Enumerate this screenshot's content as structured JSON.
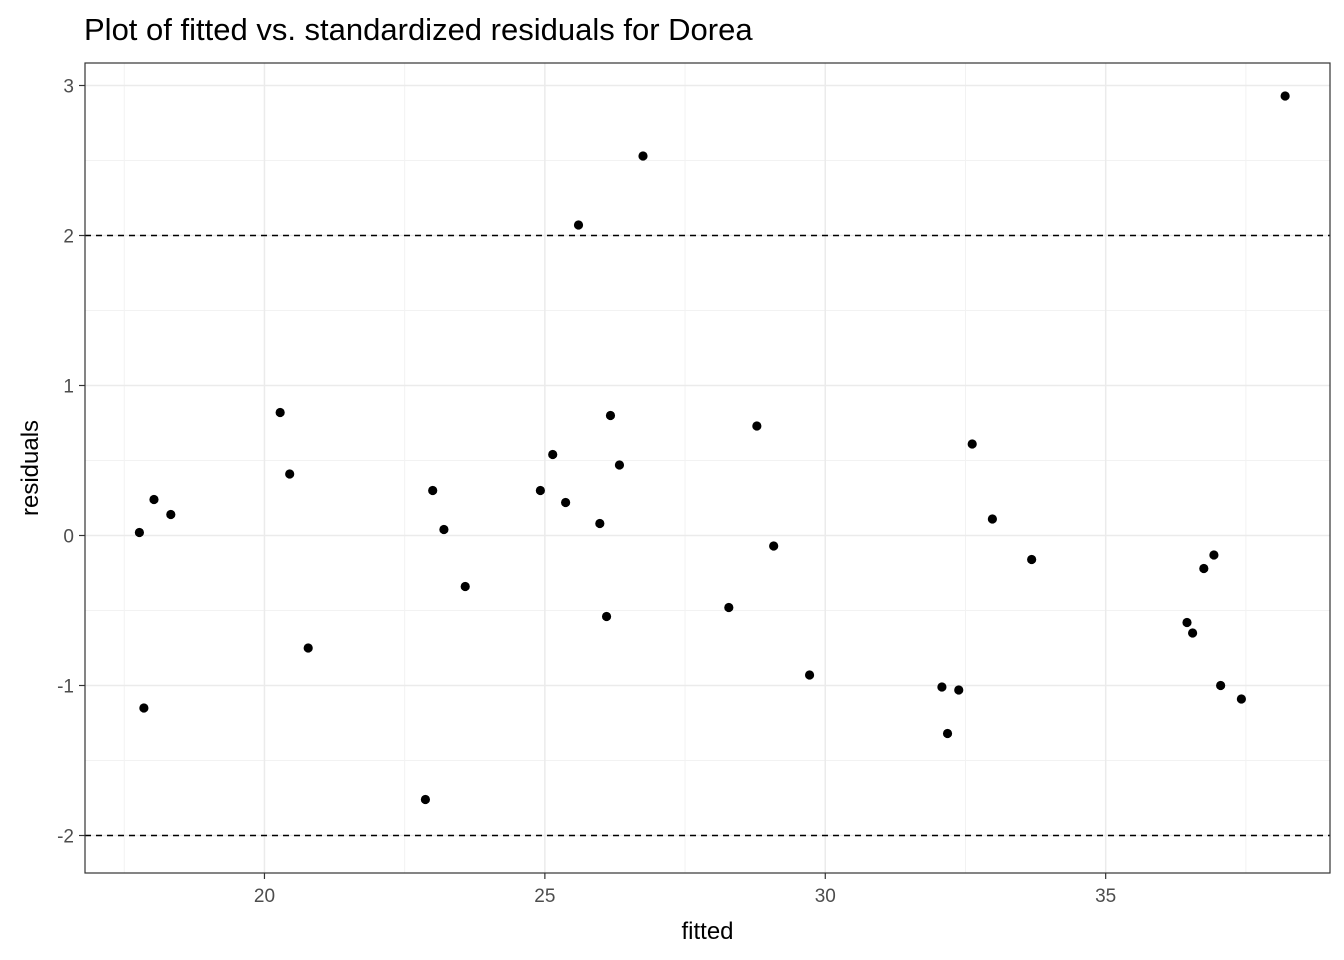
{
  "chart_data": {
    "type": "scatter",
    "title": "Plot of fitted vs. standardized residuals for Dorea",
    "xlabel": "fitted",
    "ylabel": "residuals",
    "xlim": [
      16.8,
      39.0
    ],
    "ylim": [
      -2.25,
      3.15
    ],
    "x_ticks": [
      20,
      25,
      30,
      35
    ],
    "x_tick_labels": [
      "20",
      "25",
      "30",
      "35"
    ],
    "y_ticks": [
      -2,
      -1,
      0,
      1,
      2,
      3
    ],
    "y_tick_labels": [
      "-2",
      "-1",
      "0",
      "1",
      "2",
      "3"
    ],
    "reference_lines": [
      2,
      -2
    ],
    "grid": true,
    "legend": "none",
    "point_color": "#000000",
    "points": [
      {
        "x": 17.77,
        "y": 0.02
      },
      {
        "x": 17.85,
        "y": -1.15
      },
      {
        "x": 18.03,
        "y": 0.24
      },
      {
        "x": 18.33,
        "y": 0.14
      },
      {
        "x": 20.28,
        "y": 0.82
      },
      {
        "x": 20.45,
        "y": 0.41
      },
      {
        "x": 20.78,
        "y": -0.75
      },
      {
        "x": 22.87,
        "y": -1.76
      },
      {
        "x": 23.0,
        "y": 0.3
      },
      {
        "x": 23.2,
        "y": 0.04
      },
      {
        "x": 23.58,
        "y": -0.34
      },
      {
        "x": 24.92,
        "y": 0.3
      },
      {
        "x": 25.14,
        "y": 0.54
      },
      {
        "x": 25.37,
        "y": 0.22
      },
      {
        "x": 25.6,
        "y": 2.07
      },
      {
        "x": 25.98,
        "y": 0.08
      },
      {
        "x": 26.1,
        "y": -0.54
      },
      {
        "x": 26.17,
        "y": 0.8
      },
      {
        "x": 26.33,
        "y": 0.47
      },
      {
        "x": 26.75,
        "y": 2.53
      },
      {
        "x": 28.28,
        "y": -0.48
      },
      {
        "x": 28.78,
        "y": 0.73
      },
      {
        "x": 29.08,
        "y": -0.07
      },
      {
        "x": 29.72,
        "y": -0.93
      },
      {
        "x": 32.08,
        "y": -1.01
      },
      {
        "x": 32.18,
        "y": -1.32
      },
      {
        "x": 32.38,
        "y": -1.03
      },
      {
        "x": 32.62,
        "y": 0.61
      },
      {
        "x": 32.98,
        "y": 0.11
      },
      {
        "x": 33.68,
        "y": -0.16
      },
      {
        "x": 36.45,
        "y": -0.58
      },
      {
        "x": 36.55,
        "y": -0.65
      },
      {
        "x": 36.75,
        "y": -0.22
      },
      {
        "x": 36.93,
        "y": -0.13
      },
      {
        "x": 37.05,
        "y": -1.0
      },
      {
        "x": 37.42,
        "y": -1.09
      },
      {
        "x": 38.2,
        "y": 2.93
      }
    ]
  }
}
